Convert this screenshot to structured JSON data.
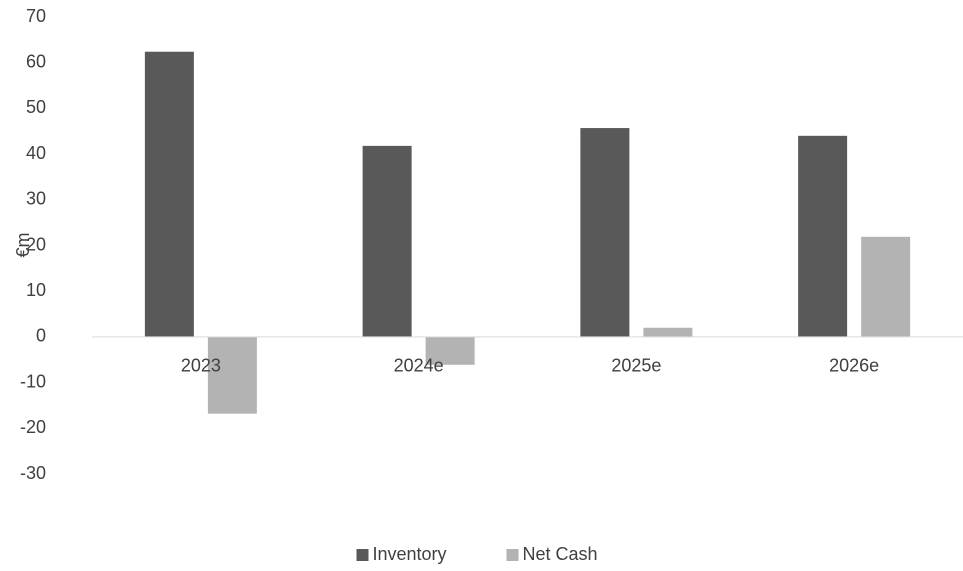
{
  "chart_data": {
    "type": "bar",
    "ylabel": "€m",
    "categories": [
      "2023",
      "2024e",
      "2025e",
      "2026e"
    ],
    "series": [
      {
        "name": "Inventory",
        "color": "#595959",
        "values": [
          62.4,
          41.8,
          45.7,
          44.0
        ]
      },
      {
        "name": "Net Cash",
        "color": "#b3b3b3",
        "values": [
          -16.8,
          -6.1,
          2.0,
          21.9
        ]
      }
    ],
    "ylim": [
      -30,
      70
    ],
    "yticks": [
      -30,
      -20,
      -10,
      0,
      10,
      20,
      30,
      40,
      50,
      60,
      70
    ],
    "grid": false,
    "legend": "bottom"
  }
}
